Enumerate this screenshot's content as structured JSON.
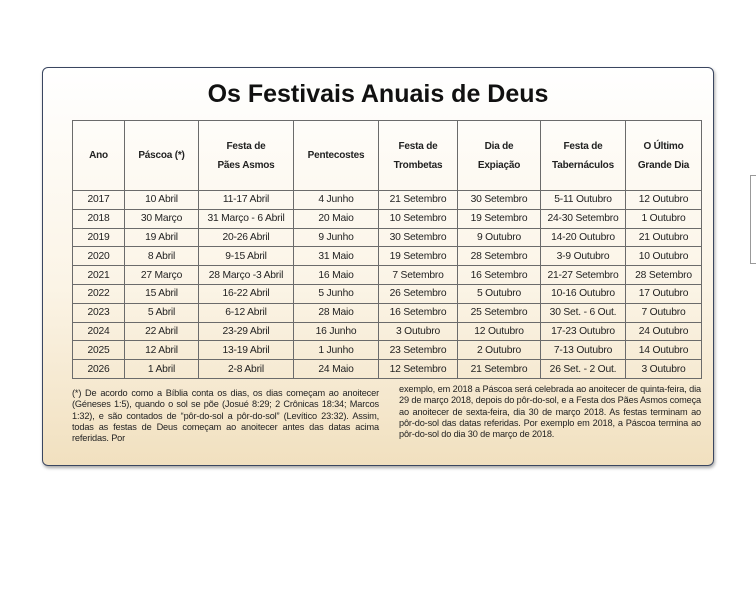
{
  "title": "Os Festivais Anuais de Deus",
  "table": {
    "headers": [
      "Ano",
      "Páscoa (*)",
      "Festa de\nPães Asmos",
      "Pentecostes",
      "Festa de\nTrombetas",
      "Dia de\nExpiação",
      "Festa de\nTabernáculos",
      "O Último\nGrande Dia"
    ],
    "rows": [
      [
        "2017",
        "10 Abril",
        "11-17 Abril",
        "4 Junho",
        "21 Setembro",
        "30 Setembro",
        "5-11 Outubro",
        "12 Outubro"
      ],
      [
        "2018",
        "30 Março",
        "31 Março - 6 Abril",
        "20 Maio",
        "10 Setembro",
        "19 Setembro",
        "24-30 Setembro",
        "1 Outubro"
      ],
      [
        "2019",
        "19 Abril",
        "20-26 Abril",
        "9 Junho",
        "30 Setembro",
        "9 Outubro",
        "14-20 Outubro",
        "21 Outubro"
      ],
      [
        "2020",
        "8 Abril",
        "9-15 Abril",
        "31 Maio",
        "19 Setembro",
        "28 Setembro",
        "3-9 Outubro",
        "10 Outubro"
      ],
      [
        "2021",
        "27 Março",
        "28 Março -3 Abril",
        "16 Maio",
        "7 Setembro",
        "16 Setembro",
        "21-27 Setembro",
        "28 Setembro"
      ],
      [
        "2022",
        "15 Abril",
        "16-22 Abril",
        "5 Junho",
        "26 Setembro",
        "5 Outubro",
        "10-16 Outubro",
        "17 Outubro"
      ],
      [
        "2023",
        "5 Abril",
        "6-12 Abril",
        "28 Maio",
        "16 Setembro",
        "25 Setembro",
        "30 Set. - 6 Out.",
        "7 Outubro"
      ],
      [
        "2024",
        "22 Abril",
        "23-29 Abril",
        "16 Junho",
        "3 Outubro",
        "12 Outubro",
        "17-23 Outubro",
        "24 Outubro"
      ],
      [
        "2025",
        "12 Abril",
        "13-19 Abril",
        "1 Junho",
        "23 Setembro",
        "2 Outubro",
        "7-13 Outubro",
        "14 Outubro"
      ],
      [
        "2026",
        "1 Abril",
        "2-8 Abril",
        "24 Maio",
        "12 Setembro",
        "21 Setembro",
        "26 Set. - 2 Out.",
        "3 Outubro"
      ]
    ]
  },
  "notes": [
    "(*) De acordo como a Bíblia conta os dias, os dias começam ao anoitecer (Géneses 1:5), quando o sol se põe (Josué 8:29; 2 Crônicas 18:34; Marcos 1:32), e são contados de “pôr-do-sol a pôr-do-sol” (Levítico 23:32). Assim, todas as festas de Deus começam ao anoitecer antes das datas acima referidas. Por",
    "exemplo, em 2018 a Páscoa será celebrada ao anoitecer de quinta-feira, dia 29 de março 2018, depois do pôr-do-sol, e a Festa dos Pães Asmos começa ao anoitecer de sexta-feira, dia 30 de março 2018. As festas terminam ao pôr-do-sol das datas referidas. Por exemplo em 2018, a Páscoa termina ao pôr-do-sol do dia 30 de março de 2018."
  ]
}
